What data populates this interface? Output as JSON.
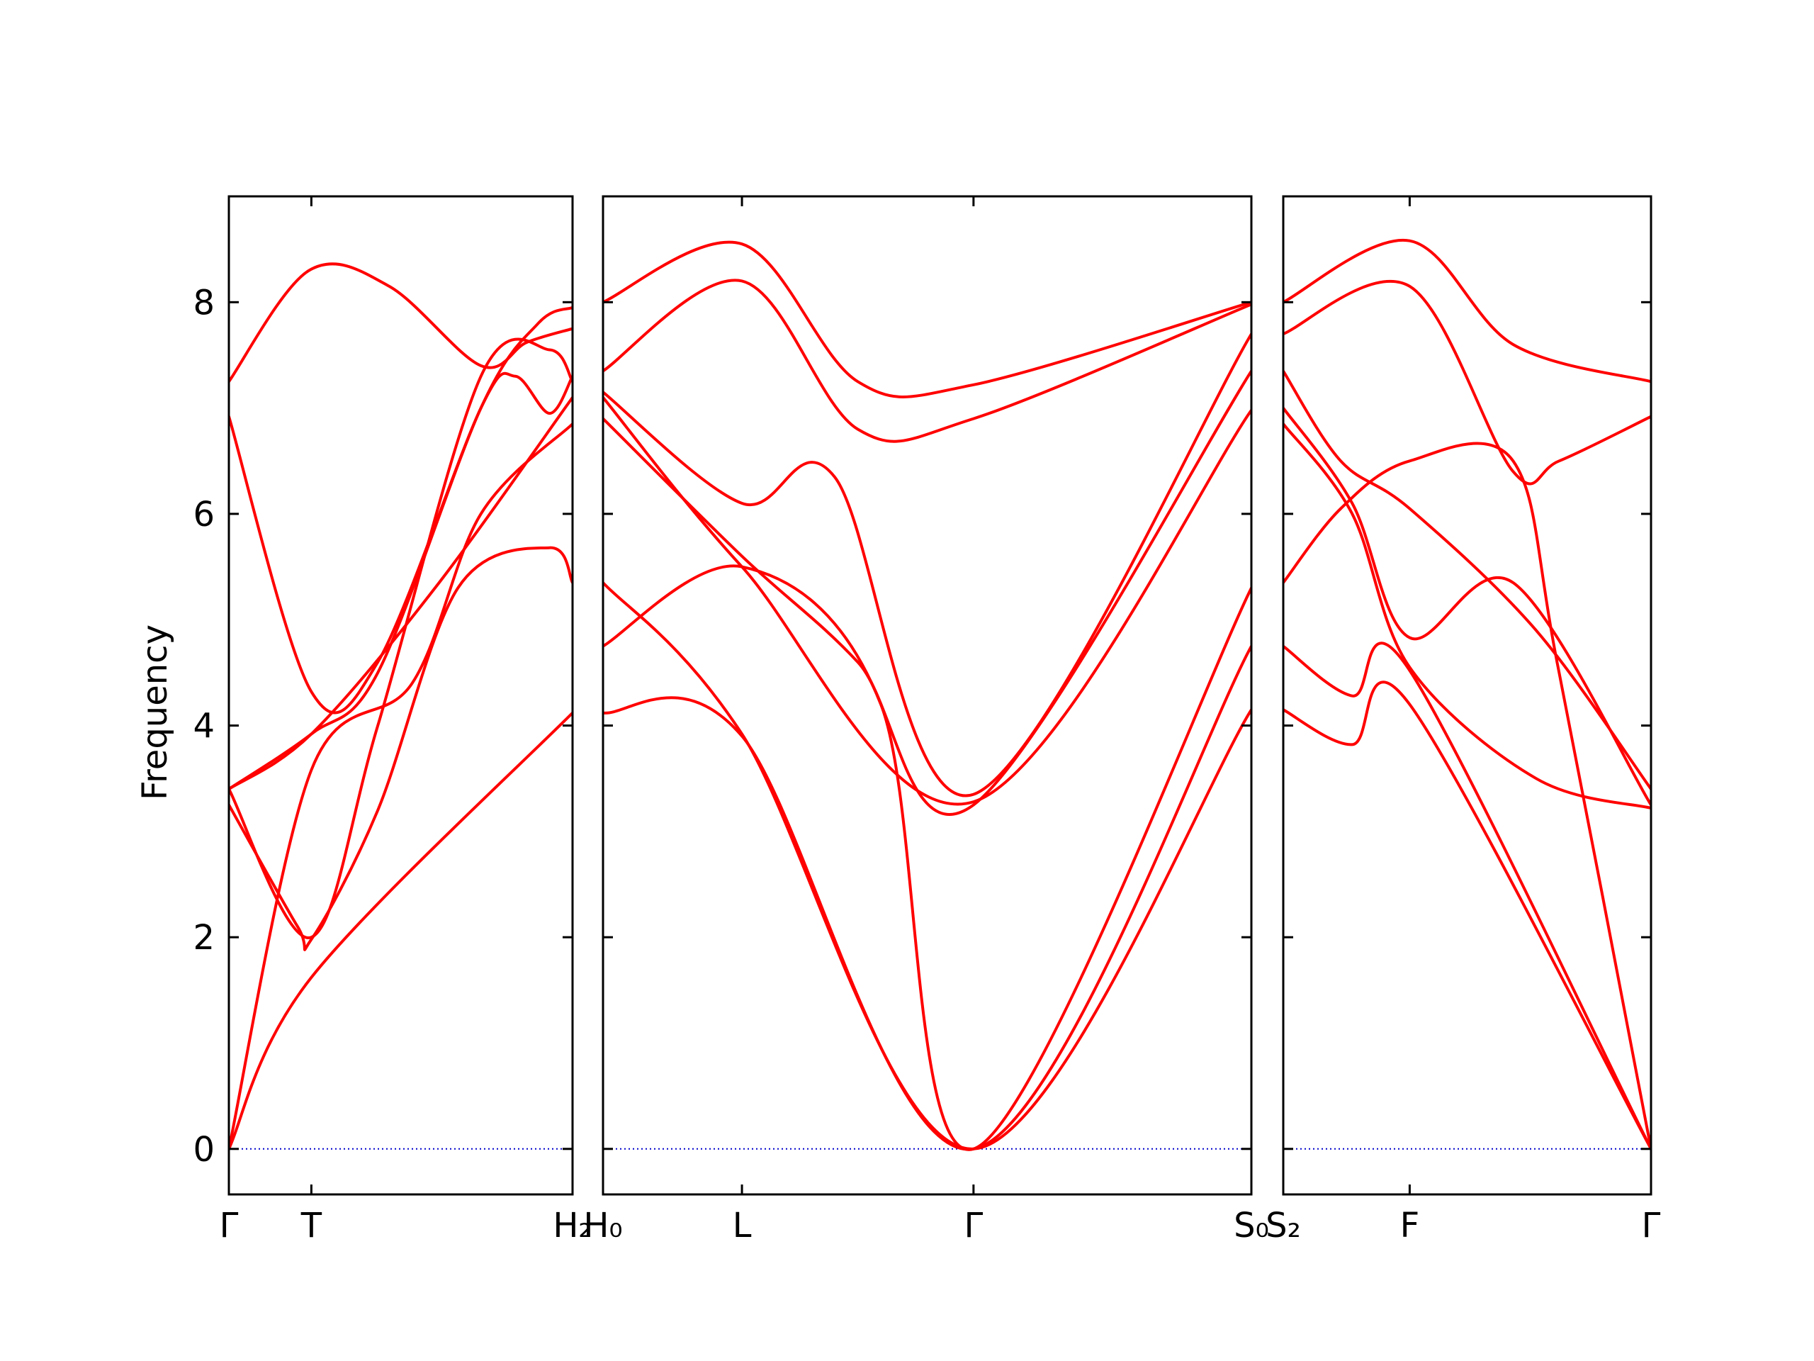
{
  "chart_data": {
    "type": "line",
    "ylabel": "Frequency",
    "ylim": [
      -0.43,
      9.0
    ],
    "yticks": [
      0,
      2,
      4,
      6,
      8
    ],
    "band_color": "#ff0000",
    "zero_line_color": "#0000cc",
    "grid": false,
    "panels": [
      {
        "xlim": [
          0,
          3.0
        ],
        "xticks": [
          {
            "x": 0,
            "label": "Γ"
          },
          {
            "x": 0.72,
            "label": "T"
          },
          {
            "x": 3.0,
            "label": "H₂"
          }
        ],
        "bands": [
          {
            "x": [
              0,
              0.72,
              3.0
            ],
            "y": [
              0,
              1.62,
              4.12
            ]
          },
          {
            "x": [
              0,
              0.72,
              1.6,
              2.2,
              3.0
            ],
            "y": [
              0,
              3.58,
              4.4,
              6.0,
              6.85
            ]
          },
          {
            "x": [
              0,
              0.6,
              0.72,
              1.3,
              2.0,
              2.8,
              3.0
            ],
            "y": [
              3.25,
              2.1,
              1.98,
              3.2,
              5.3,
              5.68,
              5.35
            ]
          },
          {
            "x": [
              0,
              0.72,
              1.8,
              3.0
            ],
            "y": [
              3.4,
              3.92,
              5.3,
              7.1
            ]
          },
          {
            "x": [
              0,
              0.72,
              1.3,
              2.2,
              2.8,
              3.0
            ],
            "y": [
              3.4,
              2.0,
              4.0,
              7.3,
              7.55,
              7.25
            ]
          },
          {
            "x": [
              0,
              0.72,
              1.3,
              2.2,
              2.5,
              2.8,
              3.0
            ],
            "y": [
              6.92,
              4.32,
              4.6,
              7.0,
              7.3,
              6.95,
              7.3
            ]
          },
          {
            "x": [
              0,
              0.7,
              1.4,
              2.2,
              2.6,
              3.0
            ],
            "y": [
              7.25,
              8.3,
              8.15,
              7.4,
              7.62,
              7.75
            ]
          },
          {
            "x": [
              0,
              0.72,
              1.3,
              2.2,
              2.7,
              3.0
            ],
            "y": [
              3.4,
              3.92,
              4.5,
              7.0,
              7.8,
              7.95
            ]
          }
        ]
      },
      {
        "xlim": [
          0,
          5.6
        ],
        "xticks": [
          {
            "x": 0,
            "label": "H₀"
          },
          {
            "x": 1.2,
            "label": "L"
          },
          {
            "x": 3.2,
            "label": "Γ"
          },
          {
            "x": 5.6,
            "label": "S₀"
          }
        ],
        "bands": [
          {
            "x": [
              0,
              1.2,
              3.2,
              5.6
            ],
            "y": [
              5.35,
              3.92,
              0,
              4.15
            ]
          },
          {
            "x": [
              0,
              1.2,
              3.2,
              5.6
            ],
            "y": [
              4.12,
              3.9,
              0,
              4.75
            ]
          },
          {
            "x": [
              0,
              1.2,
              2.4,
              3.2,
              5.6
            ],
            "y": [
              4.75,
              5.5,
              4.2,
              0,
              5.3
            ]
          },
          {
            "x": [
              0,
              1.2,
              2.2,
              3.2,
              5.6
            ],
            "y": [
              6.9,
              5.6,
              4.6,
              3.25,
              7.35
            ]
          },
          {
            "x": [
              0,
              1.2,
              3.2,
              5.6
            ],
            "y": [
              7.1,
              5.5,
              3.28,
              6.98
            ]
          },
          {
            "x": [
              0,
              1.2,
              2.0,
              3.2,
              5.6
            ],
            "y": [
              7.15,
              6.1,
              6.35,
              3.35,
              7.7
            ]
          },
          {
            "x": [
              0,
              1.2,
              2.2,
              3.2,
              5.6
            ],
            "y": [
              7.35,
              8.2,
              6.8,
              6.9,
              7.98
            ]
          },
          {
            "x": [
              0,
              1.2,
              2.2,
              3.2,
              5.6
            ],
            "y": [
              8.0,
              8.55,
              7.25,
              7.22,
              8.0
            ]
          }
        ]
      },
      {
        "xlim": [
          0,
          3.2
        ],
        "xticks": [
          {
            "x": 0,
            "label": "S₂"
          },
          {
            "x": 1.1,
            "label": "F"
          },
          {
            "x": 3.2,
            "label": "Γ"
          }
        ],
        "bands": [
          {
            "x": [
              0,
              0.6,
              1.1,
              3.2
            ],
            "y": [
              4.15,
              3.82,
              4.2,
              0
            ]
          },
          {
            "x": [
              0,
              0.6,
              1.1,
              3.2
            ],
            "y": [
              4.75,
              4.28,
              4.52,
              0
            ]
          },
          {
            "x": [
              0,
              0.5,
              1.1,
              2.0,
              2.4,
              3.2
            ],
            "y": [
              5.35,
              6.05,
              6.5,
              6.5,
              4.5,
              0
            ]
          },
          {
            "x": [
              0,
              0.6,
              1.1,
              2.2,
              3.2
            ],
            "y": [
              6.85,
              6.0,
              4.55,
              3.5,
              3.22
            ]
          },
          {
            "x": [
              0,
              0.6,
              1.1,
              2.0,
              3.2
            ],
            "y": [
              7.0,
              6.1,
              4.83,
              5.35,
              3.25
            ]
          },
          {
            "x": [
              0,
              0.5,
              1.1,
              2.2,
              3.2
            ],
            "y": [
              7.35,
              6.5,
              6.05,
              4.9,
              3.4
            ]
          },
          {
            "x": [
              0,
              1.1,
              2.0,
              2.4,
              3.2
            ],
            "y": [
              7.7,
              8.15,
              6.4,
              6.5,
              6.92
            ]
          },
          {
            "x": [
              0,
              1.1,
              2.0,
              3.2
            ],
            "y": [
              8.0,
              8.58,
              7.6,
              7.25
            ]
          }
        ]
      }
    ]
  }
}
